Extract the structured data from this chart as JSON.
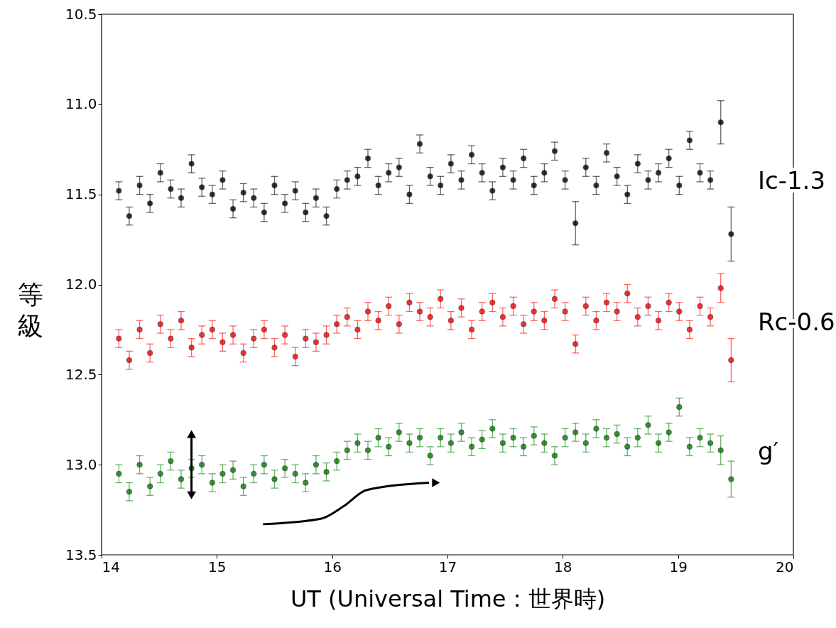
{
  "chart_data": {
    "type": "scatter",
    "xlabel": "UT (Universal Time : 世界時)",
    "ylabel": "等級",
    "xlim": [
      14,
      20
    ],
    "xticks": [
      14,
      15,
      16,
      17,
      18,
      19,
      20
    ],
    "ylim": [
      13.5,
      10.5
    ],
    "yticks": [
      {
        "value": 10.5,
        "label": "10.5"
      },
      {
        "value": 11,
        "label": "11.0"
      },
      {
        "value": 11.5,
        "label": "11.5"
      },
      {
        "value": 12,
        "label": "12.0"
      },
      {
        "value": 12.5,
        "label": "12.5"
      },
      {
        "value": 13,
        "label": "13.0"
      },
      {
        "value": 13.5,
        "label": "13.5"
      }
    ],
    "grid": false,
    "marker": "circle",
    "x": [
      14.15,
      14.24,
      14.33,
      14.42,
      14.51,
      14.6,
      14.69,
      14.78,
      14.87,
      14.96,
      15.05,
      15.14,
      15.23,
      15.32,
      15.41,
      15.5,
      15.59,
      15.68,
      15.77,
      15.86,
      15.95,
      16.04,
      16.13,
      16.22,
      16.31,
      16.4,
      16.49,
      16.58,
      16.67,
      16.76,
      16.85,
      16.94,
      17.03,
      17.12,
      17.21,
      17.3,
      17.39,
      17.48,
      17.57,
      17.66,
      17.75,
      17.84,
      17.93,
      18.02,
      18.11,
      18.2,
      18.29,
      18.38,
      18.47,
      18.56,
      18.65,
      18.74,
      18.83,
      18.92,
      19.01,
      19.1,
      19.19,
      19.28,
      19.37,
      19.46
    ],
    "series": [
      {
        "name": "Ic-1.3",
        "color": "#000000",
        "values": [
          11.48,
          11.62,
          11.45,
          11.55,
          11.38,
          11.47,
          11.52,
          11.33,
          11.46,
          11.5,
          11.42,
          11.58,
          11.49,
          11.52,
          11.6,
          11.45,
          11.55,
          11.48,
          11.6,
          11.52,
          11.62,
          11.47,
          11.42,
          11.4,
          11.3,
          11.45,
          11.38,
          11.35,
          11.5,
          11.22,
          11.4,
          11.45,
          11.33,
          11.42,
          11.28,
          11.38,
          11.48,
          11.35,
          11.42,
          11.3,
          11.45,
          11.38,
          11.26,
          11.42,
          11.66,
          11.35,
          11.45,
          11.27,
          11.4,
          11.5,
          11.33,
          11.42,
          11.38,
          11.3,
          11.45,
          11.2,
          11.38,
          11.42,
          11.1,
          11.72
        ],
        "errors": [
          0.05,
          0.05,
          0.05,
          0.05,
          0.05,
          0.05,
          0.05,
          0.05,
          0.05,
          0.05,
          0.05,
          0.05,
          0.05,
          0.05,
          0.05,
          0.05,
          0.05,
          0.05,
          0.05,
          0.05,
          0.05,
          0.05,
          0.05,
          0.05,
          0.05,
          0.05,
          0.05,
          0.05,
          0.05,
          0.05,
          0.05,
          0.05,
          0.05,
          0.05,
          0.05,
          0.05,
          0.05,
          0.05,
          0.05,
          0.05,
          0.05,
          0.05,
          0.05,
          0.05,
          0.12,
          0.05,
          0.05,
          0.05,
          0.05,
          0.05,
          0.05,
          0.05,
          0.05,
          0.05,
          0.05,
          0.05,
          0.05,
          0.05,
          0.12,
          0.15
        ]
      },
      {
        "name": "Rc-0.6",
        "color": "#ff0000",
        "values": [
          12.3,
          12.42,
          12.25,
          12.38,
          12.22,
          12.3,
          12.2,
          12.35,
          12.28,
          12.25,
          12.32,
          12.28,
          12.38,
          12.3,
          12.25,
          12.35,
          12.28,
          12.4,
          12.3,
          12.32,
          12.28,
          12.22,
          12.18,
          12.25,
          12.15,
          12.2,
          12.12,
          12.22,
          12.1,
          12.15,
          12.18,
          12.08,
          12.2,
          12.13,
          12.25,
          12.15,
          12.1,
          12.18,
          12.12,
          12.22,
          12.15,
          12.2,
          12.08,
          12.15,
          12.33,
          12.12,
          12.2,
          12.1,
          12.15,
          12.05,
          12.18,
          12.12,
          12.2,
          12.1,
          12.15,
          12.25,
          12.12,
          12.18,
          12.02,
          12.42
        ],
        "errors": [
          0.05,
          0.05,
          0.05,
          0.05,
          0.05,
          0.05,
          0.05,
          0.05,
          0.05,
          0.05,
          0.05,
          0.05,
          0.05,
          0.05,
          0.05,
          0.05,
          0.05,
          0.05,
          0.05,
          0.05,
          0.05,
          0.05,
          0.05,
          0.05,
          0.05,
          0.05,
          0.05,
          0.05,
          0.05,
          0.05,
          0.05,
          0.05,
          0.05,
          0.05,
          0.05,
          0.05,
          0.05,
          0.05,
          0.05,
          0.05,
          0.05,
          0.05,
          0.05,
          0.05,
          0.05,
          0.05,
          0.05,
          0.05,
          0.05,
          0.05,
          0.05,
          0.05,
          0.05,
          0.05,
          0.05,
          0.05,
          0.05,
          0.05,
          0.08,
          0.12
        ]
      },
      {
        "name": "g′",
        "color": "#008000",
        "values": [
          13.05,
          13.15,
          13.0,
          13.12,
          13.05,
          12.98,
          13.08,
          13.02,
          13.0,
          13.1,
          13.05,
          13.03,
          13.12,
          13.05,
          13.0,
          13.08,
          13.02,
          13.05,
          13.1,
          13.0,
          13.04,
          12.98,
          12.92,
          12.88,
          12.92,
          12.85,
          12.9,
          12.82,
          12.88,
          12.85,
          12.95,
          12.85,
          12.88,
          12.82,
          12.9,
          12.86,
          12.8,
          12.88,
          12.85,
          12.9,
          12.84,
          12.88,
          12.95,
          12.85,
          12.82,
          12.88,
          12.8,
          12.85,
          12.83,
          12.9,
          12.85,
          12.78,
          12.88,
          12.82,
          12.68,
          12.9,
          12.85,
          12.88,
          12.92,
          13.08
        ],
        "errors": [
          0.05,
          0.05,
          0.05,
          0.05,
          0.05,
          0.05,
          0.05,
          0.05,
          0.05,
          0.05,
          0.05,
          0.05,
          0.05,
          0.05,
          0.05,
          0.05,
          0.05,
          0.05,
          0.05,
          0.05,
          0.05,
          0.05,
          0.05,
          0.05,
          0.05,
          0.05,
          0.05,
          0.05,
          0.05,
          0.05,
          0.05,
          0.05,
          0.05,
          0.05,
          0.05,
          0.05,
          0.05,
          0.05,
          0.05,
          0.05,
          0.05,
          0.05,
          0.05,
          0.05,
          0.05,
          0.05,
          0.05,
          0.05,
          0.05,
          0.05,
          0.05,
          0.05,
          0.05,
          0.05,
          0.05,
          0.05,
          0.05,
          0.05,
          0.08,
          0.1
        ]
      }
    ]
  }
}
